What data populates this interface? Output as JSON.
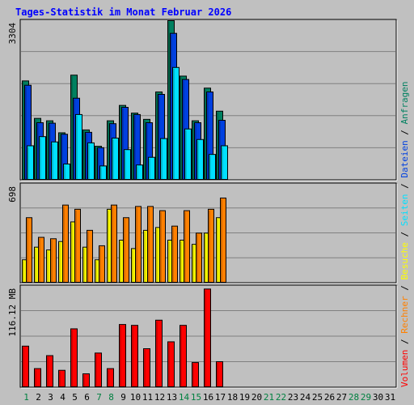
{
  "chart_data": {
    "type": "bar",
    "title": "Tages-Statistik im Monat Februar 2026",
    "days": [
      "1",
      "2",
      "3",
      "4",
      "5",
      "6",
      "7",
      "8",
      "9",
      "10",
      "11",
      "12",
      "13",
      "14",
      "15",
      "16",
      "17",
      "18",
      "19",
      "20",
      "21",
      "22",
      "23",
      "24",
      "25",
      "26",
      "27",
      "28",
      "29",
      "30",
      "31"
    ],
    "weekend_days": [
      "1",
      "7",
      "8",
      "14",
      "15",
      "21",
      "22",
      "28",
      "29"
    ],
    "panels": [
      {
        "id": "top",
        "max_label": "3304",
        "ylim": [
          0,
          3304
        ],
        "series": [
          {
            "name": "Anfragen",
            "color": "#008060",
            "values": [
              2050,
              1270,
              1220,
              970,
              2170,
              1030,
              690,
              1220,
              1540,
              1380,
              1250,
              1820,
              3304,
              2150,
              1220,
              1900,
              1420,
              null,
              null,
              null,
              null,
              null,
              null,
              null,
              null,
              null,
              null,
              null,
              null,
              null,
              null
            ]
          },
          {
            "name": "Dateien",
            "color": "#0040e0",
            "values": [
              1960,
              1180,
              1170,
              940,
              1690,
              980,
              660,
              1160,
              1500,
              1350,
              1180,
              1770,
              3040,
              2080,
              1180,
              1820,
              1230,
              null,
              null,
              null,
              null,
              null,
              null,
              null,
              null,
              null,
              null,
              null,
              null,
              null,
              null
            ]
          },
          {
            "name": "Seiten",
            "color": "#00e0ff",
            "values": [
              700,
              890,
              780,
              320,
              1350,
              760,
              280,
              860,
              620,
              300,
              460,
              850,
              2330,
              1050,
              830,
              520,
              700,
              null,
              null,
              null,
              null,
              null,
              null,
              null,
              null,
              null,
              null,
              null,
              null,
              null,
              null
            ]
          }
        ]
      },
      {
        "id": "middle",
        "max_label": "698",
        "ylim": [
          0,
          698
        ],
        "series": [
          {
            "name": "Besuche",
            "color": "#ffff00",
            "values": [
              160,
              250,
              230,
              290,
              430,
              250,
              160,
              520,
              300,
              240,
              370,
              390,
              300,
              300,
              270,
              350,
              460,
              null,
              null,
              null,
              null,
              null,
              null,
              null,
              null,
              null,
              null,
              null,
              null,
              null,
              null
            ]
          },
          {
            "name": "Rechner",
            "color": "#ff8000",
            "values": [
              460,
              320,
              310,
              550,
              520,
              370,
              260,
              550,
              460,
              540,
              540,
              510,
              400,
              510,
              350,
              520,
              600,
              null,
              null,
              null,
              null,
              null,
              null,
              null,
              null,
              null,
              null,
              null,
              null,
              null,
              null
            ]
          }
        ]
      },
      {
        "id": "bottom",
        "max_label": "116.12 MB",
        "ylim": [
          0,
          116.12
        ],
        "series": [
          {
            "name": "Volumen",
            "color": "#ff0000",
            "values": [
              47,
              21,
              36,
              19,
              67,
              15,
              39,
              21,
              72,
              71,
              44,
              77,
              52,
              71,
              28,
              113,
              29,
              null,
              null,
              null,
              null,
              null,
              null,
              null,
              null,
              null,
              null,
              null,
              null,
              null,
              null
            ]
          }
        ]
      }
    ],
    "legend": [
      {
        "label": "Volumen",
        "color": "#ff0000"
      },
      {
        "label": "Rechner",
        "color": "#ff8000"
      },
      {
        "label": "Besuche",
        "color": "#ffff00"
      },
      {
        "label": "Seiten",
        "color": "#00e0ff"
      },
      {
        "label": "Dateien",
        "color": "#0040e0"
      },
      {
        "label": "Anfragen",
        "color": "#008060"
      }
    ],
    "legend_separator": " / ",
    "colors": {
      "background": "#c0c0c0",
      "title": "#0000ff",
      "axis_text": "#000000",
      "weekday_label": "#000000",
      "weekend_label": "#008040",
      "grid": "#808080"
    }
  }
}
